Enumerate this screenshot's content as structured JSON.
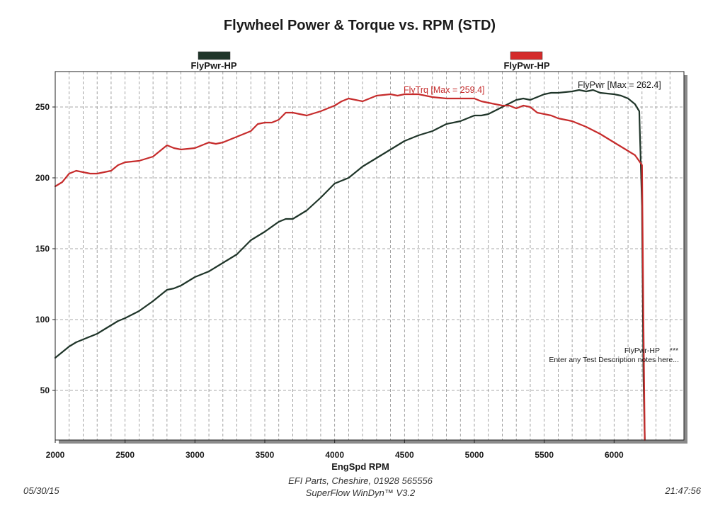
{
  "chart_data": {
    "type": "line",
    "title": "Flywheel Power & Torque vs. RPM (STD)",
    "xlabel": "EngSpd RPM",
    "ylabel": "",
    "xlim": [
      2000,
      6500
    ],
    "ylim": [
      15,
      275
    ],
    "x_ticks": [
      2000,
      2500,
      3000,
      3500,
      4000,
      4500,
      5000,
      5500,
      6000
    ],
    "y_ticks": [
      50,
      100,
      150,
      200,
      250
    ],
    "grid": true,
    "legend": [
      {
        "label": "FlyPwr-HP",
        "color": "#1f3529",
        "placement": "top-left"
      },
      {
        "label": "FlyPwr-HP",
        "color": "#d42b2b",
        "placement": "top-right"
      }
    ],
    "series": [
      {
        "name": "FlyPwr",
        "color": "#1f3529",
        "annotation": "FlyPwr [Max = 262.4]",
        "x": [
          2000,
          2100,
          2150,
          2200,
          2300,
          2400,
          2450,
          2500,
          2600,
          2700,
          2800,
          2850,
          2900,
          3000,
          3100,
          3200,
          3300,
          3400,
          3500,
          3600,
          3650,
          3700,
          3800,
          3900,
          4000,
          4100,
          4150,
          4200,
          4300,
          4400,
          4500,
          4600,
          4700,
          4800,
          4900,
          5000,
          5050,
          5100,
          5200,
          5300,
          5350,
          5400,
          5450,
          5500,
          5550,
          5600,
          5700,
          5750,
          5800,
          5850,
          5900,
          6000,
          6050,
          6100,
          6150,
          6180,
          6200,
          6210,
          6220
        ],
        "values": [
          73,
          81,
          84,
          86,
          90,
          96,
          99,
          101,
          106,
          113,
          121,
          122,
          124,
          130,
          134,
          140,
          146,
          156,
          162,
          169,
          171,
          171,
          177,
          186,
          196,
          200,
          204,
          208,
          214,
          220,
          226,
          230,
          233,
          238,
          240,
          244,
          244,
          245,
          250,
          255,
          256,
          255,
          257,
          259,
          260,
          260,
          261,
          262,
          261,
          262,
          260,
          259,
          258,
          256,
          252,
          247,
          180,
          60,
          15
        ]
      },
      {
        "name": "FlyTrq",
        "color": "#c62c2c",
        "annotation": "FlyTrq [Max = 259.4]",
        "x": [
          2000,
          2050,
          2100,
          2150,
          2200,
          2250,
          2300,
          2400,
          2450,
          2500,
          2600,
          2700,
          2800,
          2850,
          2900,
          3000,
          3100,
          3150,
          3200,
          3300,
          3400,
          3450,
          3500,
          3550,
          3600,
          3650,
          3700,
          3800,
          3900,
          4000,
          4050,
          4100,
          4200,
          4250,
          4300,
          4400,
          4450,
          4500,
          4600,
          4700,
          4800,
          4900,
          5000,
          5050,
          5100,
          5200,
          5250,
          5300,
          5350,
          5400,
          5450,
          5500,
          5550,
          5600,
          5700,
          5750,
          5800,
          5900,
          6000,
          6050,
          6100,
          6150,
          6200,
          6210,
          6220
        ],
        "values": [
          194,
          197,
          203,
          205,
          204,
          203,
          203,
          205,
          209,
          211,
          212,
          215,
          223,
          221,
          220,
          221,
          225,
          224,
          225,
          229,
          233,
          238,
          239,
          239,
          241,
          246,
          246,
          244,
          247,
          251,
          254,
          256,
          254,
          256,
          258,
          259,
          258,
          259,
          259,
          257,
          256,
          256,
          256,
          254,
          253,
          251,
          251,
          249,
          251,
          250,
          246,
          245,
          244,
          242,
          240,
          238,
          236,
          231,
          225,
          222,
          219,
          216,
          209,
          100,
          15
        ]
      }
    ]
  },
  "annotations": {
    "note_line1": "FlyPwr-HP",
    "note_line1_suffix": "***",
    "note_line2": "Enter any Test Description notes here..."
  },
  "footer": {
    "date": "05/30/15",
    "company": "EFI Parts, Cheshire, 01928 565556",
    "software": "SuperFlow WinDyn™ V3.2",
    "time": "21:47:56"
  }
}
